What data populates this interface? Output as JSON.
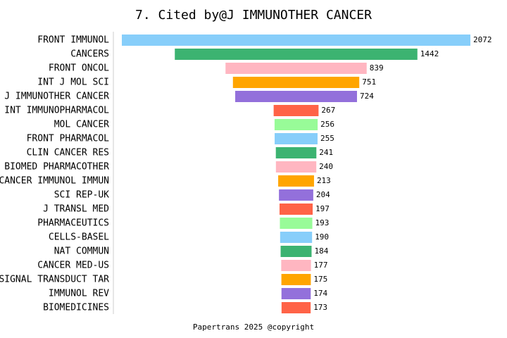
{
  "chart_data": {
    "type": "funnel-bar",
    "title": "7. Cited by@J IMMUNOTHER CANCER",
    "footer": "Papertrans 2025 @copyright",
    "categories": [
      "FRONT IMMUNOL",
      "CANCERS",
      "FRONT ONCOL",
      "INT J MOL SCI",
      "J IMMUNOTHER CANCER",
      "INT IMMUNOPHARMACOL",
      "MOL CANCER",
      "FRONT PHARMACOL",
      "CLIN CANCER RES",
      "BIOMED PHARMACOTHER",
      "CANCER IMMUNOL IMMUN",
      "SCI REP-UK",
      "J TRANSL MED",
      "PHARMACEUTICS",
      "CELLS-BASEL",
      "NAT COMMUN",
      "CANCER MED-US",
      "SIGNAL TRANSDUCT TAR",
      "IMMUNOL REV",
      "BIOMEDICINES"
    ],
    "values": [
      2072,
      1442,
      839,
      751,
      724,
      267,
      256,
      255,
      241,
      240,
      213,
      204,
      197,
      193,
      190,
      184,
      177,
      175,
      174,
      173
    ],
    "colors": [
      "#87CEFA",
      "#3CB371",
      "#FFB6C1",
      "#FFA500",
      "#9370DB",
      "#FF6347",
      "#98FB98",
      "#87CEFA",
      "#3CB371",
      "#FFB6C1",
      "#FFA500",
      "#9370DB",
      "#FF6347",
      "#98FB98",
      "#87CEFA",
      "#3CB371",
      "#FFB6C1",
      "#FFA500",
      "#9370DB",
      "#FF6347"
    ]
  }
}
